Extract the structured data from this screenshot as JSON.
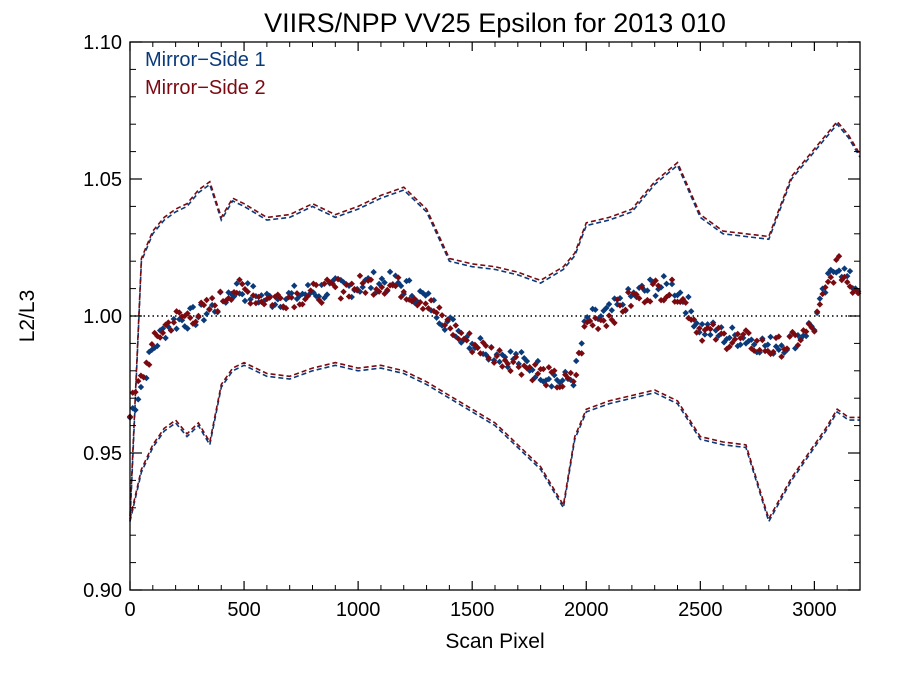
{
  "chart_data": {
    "type": "scatter",
    "title": "VIIRS/NPP VV25 Epsilon for 2013 010",
    "xlabel": "Scan Pixel",
    "ylabel": "L2/L3",
    "xlim": [
      0,
      3200
    ],
    "ylim": [
      0.9,
      1.1
    ],
    "x_ticks": [
      0,
      500,
      1000,
      1500,
      2000,
      2500,
      3000
    ],
    "y_ticks": [
      0.9,
      0.95,
      1.0,
      1.05,
      1.1
    ],
    "x_tick_labels": [
      "0",
      "500",
      "1000",
      "1500",
      "2000",
      "2500",
      "3000"
    ],
    "y_tick_labels": [
      "0.90",
      "0.95",
      "1.00",
      "1.05",
      "1.10"
    ],
    "reference_line": {
      "y": 1.0,
      "style": "dotted"
    },
    "legend_position": "top-left",
    "series": [
      {
        "name": "Mirror−Side 1",
        "color": "#0b3a7a",
        "marker": "diamond",
        "x": [
          0,
          50,
          100,
          150,
          200,
          250,
          300,
          350,
          400,
          450,
          500,
          600,
          700,
          800,
          900,
          1000,
          1100,
          1200,
          1300,
          1400,
          1500,
          1600,
          1700,
          1800,
          1900,
          1950,
          2000,
          2100,
          2200,
          2300,
          2400,
          2500,
          2600,
          2700,
          2800,
          2900,
          3000,
          3050,
          3100,
          3150,
          3200
        ],
        "mean": [
          0.963,
          0.975,
          0.988,
          0.995,
          0.998,
          0.999,
          1.0,
          1.002,
          1.005,
          1.01,
          1.009,
          1.006,
          1.007,
          1.009,
          1.01,
          1.011,
          1.013,
          1.011,
          1.006,
          0.997,
          0.991,
          0.987,
          0.984,
          0.98,
          0.976,
          0.978,
          0.998,
          1.001,
          1.007,
          1.011,
          1.01,
          0.996,
          0.993,
          0.992,
          0.989,
          0.991,
          0.997,
          1.01,
          1.02,
          1.013,
          1.01
        ],
        "upper": [
          0.925,
          1.02,
          1.03,
          1.035,
          1.038,
          1.04,
          1.045,
          1.048,
          1.035,
          1.042,
          1.04,
          1.035,
          1.036,
          1.04,
          1.036,
          1.039,
          1.043,
          1.046,
          1.038,
          1.02,
          1.018,
          1.017,
          1.015,
          1.012,
          1.017,
          1.022,
          1.033,
          1.035,
          1.038,
          1.048,
          1.055,
          1.036,
          1.03,
          1.029,
          1.028,
          1.05,
          1.06,
          1.065,
          1.07,
          1.065,
          1.058
        ],
        "lower": [
          0.925,
          0.943,
          0.952,
          0.958,
          0.961,
          0.956,
          0.96,
          0.953,
          0.974,
          0.98,
          0.982,
          0.978,
          0.977,
          0.98,
          0.982,
          0.98,
          0.981,
          0.979,
          0.975,
          0.97,
          0.965,
          0.96,
          0.952,
          0.944,
          0.93,
          0.955,
          0.965,
          0.968,
          0.97,
          0.972,
          0.968,
          0.955,
          0.953,
          0.952,
          0.925,
          0.94,
          0.952,
          0.958,
          0.965,
          0.962,
          0.962
        ]
      },
      {
        "name": "Mirror−Side 2",
        "color": "#7a0a10",
        "marker": "diamond",
        "x": [
          0,
          50,
          100,
          150,
          200,
          250,
          300,
          350,
          400,
          450,
          500,
          600,
          700,
          800,
          900,
          1000,
          1100,
          1200,
          1300,
          1400,
          1500,
          1600,
          1700,
          1800,
          1900,
          1950,
          2000,
          2100,
          2200,
          2300,
          2400,
          2500,
          2600,
          2700,
          2800,
          2900,
          3000,
          3050,
          3100,
          3150,
          3200
        ],
        "mean": [
          0.966,
          0.977,
          0.989,
          0.996,
          0.999,
          1.0,
          1.001,
          1.003,
          1.006,
          1.01,
          1.009,
          1.006,
          1.007,
          1.008,
          1.01,
          1.011,
          1.012,
          1.01,
          1.005,
          0.996,
          0.99,
          0.986,
          0.983,
          0.979,
          0.975,
          0.977,
          0.997,
          1.0,
          1.006,
          1.01,
          1.009,
          0.995,
          0.992,
          0.991,
          0.988,
          0.99,
          0.996,
          1.009,
          1.019,
          1.012,
          1.01
        ],
        "upper": [
          0.927,
          1.021,
          1.031,
          1.036,
          1.039,
          1.041,
          1.046,
          1.049,
          1.036,
          1.043,
          1.041,
          1.036,
          1.037,
          1.041,
          1.037,
          1.04,
          1.044,
          1.047,
          1.039,
          1.021,
          1.019,
          1.018,
          1.016,
          1.013,
          1.018,
          1.023,
          1.034,
          1.036,
          1.039,
          1.049,
          1.056,
          1.037,
          1.031,
          1.03,
          1.029,
          1.051,
          1.061,
          1.066,
          1.071,
          1.066,
          1.059
        ],
        "lower": [
          0.926,
          0.944,
          0.953,
          0.959,
          0.962,
          0.957,
          0.961,
          0.954,
          0.975,
          0.981,
          0.983,
          0.979,
          0.978,
          0.981,
          0.983,
          0.981,
          0.982,
          0.98,
          0.976,
          0.971,
          0.966,
          0.961,
          0.953,
          0.945,
          0.931,
          0.956,
          0.966,
          0.969,
          0.971,
          0.973,
          0.969,
          0.956,
          0.954,
          0.953,
          0.926,
          0.941,
          0.953,
          0.959,
          0.966,
          0.963,
          0.963
        ]
      }
    ]
  }
}
